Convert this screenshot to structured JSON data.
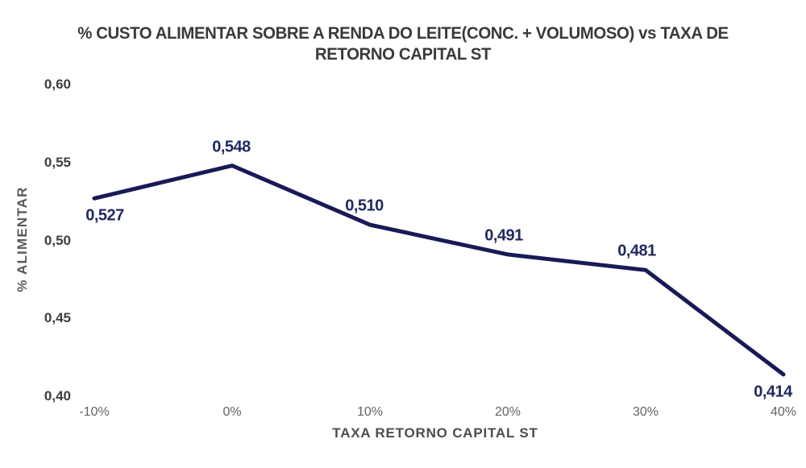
{
  "colors": {
    "background": "#ffffff",
    "line": "#191a55",
    "data_label": "#202a60",
    "title_text": "#3a3a3a",
    "y_tick_text": "#3d3d3d",
    "x_tick_text": "#636363",
    "axis_title_text": "#4d4d4d"
  },
  "chart_data": {
    "type": "line",
    "title": "% CUSTO ALIMENTAR SOBRE A RENDA DO LEITE(CONC. + VOLUMOSO) vs TAXA DE RETORNO CAPITAL ST",
    "xlabel": "TAXA RETORNO CAPITAL ST",
    "ylabel": "% ALIMENTAR",
    "categories": [
      "-10%",
      "0%",
      "10%",
      "20%",
      "30%",
      "40%"
    ],
    "values": [
      0.527,
      0.548,
      0.51,
      0.491,
      0.481,
      0.414
    ],
    "data_labels": [
      "0,527",
      "0,548",
      "0,510",
      "0,491",
      "0,481",
      "0,414"
    ],
    "label_placement": [
      "below",
      "above",
      "above",
      "above",
      "above",
      "below"
    ],
    "yticks": [
      "0,60",
      "0,55",
      "0,50",
      "0,45",
      "0,40"
    ],
    "ytick_values": [
      0.6,
      0.55,
      0.5,
      0.45,
      0.4
    ],
    "ylim": [
      0.4,
      0.6
    ],
    "grid": false,
    "legend": false,
    "series_name": "% CUSTO ALIMENTAR"
  }
}
